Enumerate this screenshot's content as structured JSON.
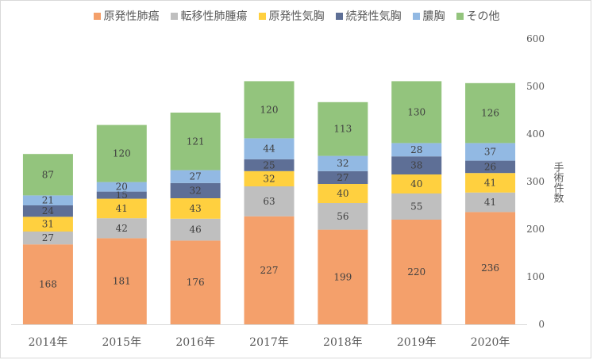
{
  "chart_data": {
    "type": "bar",
    "stacked": true,
    "categories": [
      "2014年",
      "2015年",
      "2016年",
      "2017年",
      "2018年",
      "2019年",
      "2020年"
    ],
    "series": [
      {
        "name": "原発性肺癌",
        "color": "#f4a06b",
        "values": [
          168,
          181,
          176,
          227,
          199,
          220,
          236
        ]
      },
      {
        "name": "転移性肺腫瘍",
        "color": "#bfbfbf",
        "values": [
          27,
          42,
          46,
          63,
          56,
          55,
          41
        ]
      },
      {
        "name": "原発性気胸",
        "color": "#ffd03f",
        "values": [
          31,
          41,
          43,
          32,
          40,
          40,
          41
        ]
      },
      {
        "name": "続発性気胸",
        "color": "#5e6f96",
        "values": [
          24,
          15,
          32,
          25,
          27,
          38,
          26
        ]
      },
      {
        "name": "膿胸",
        "color": "#92b9e3",
        "values": [
          21,
          20,
          27,
          44,
          32,
          28,
          37
        ]
      },
      {
        "name": "その他",
        "color": "#93c47d",
        "values": [
          87,
          120,
          121,
          120,
          113,
          130,
          126
        ]
      }
    ],
    "ylabel": "手術件数",
    "ylim": [
      0,
      600
    ],
    "yticks": [
      0,
      100,
      200,
      300,
      400,
      500,
      600
    ],
    "y_axis_side": "right",
    "legend_position": "top",
    "grid": false
  }
}
